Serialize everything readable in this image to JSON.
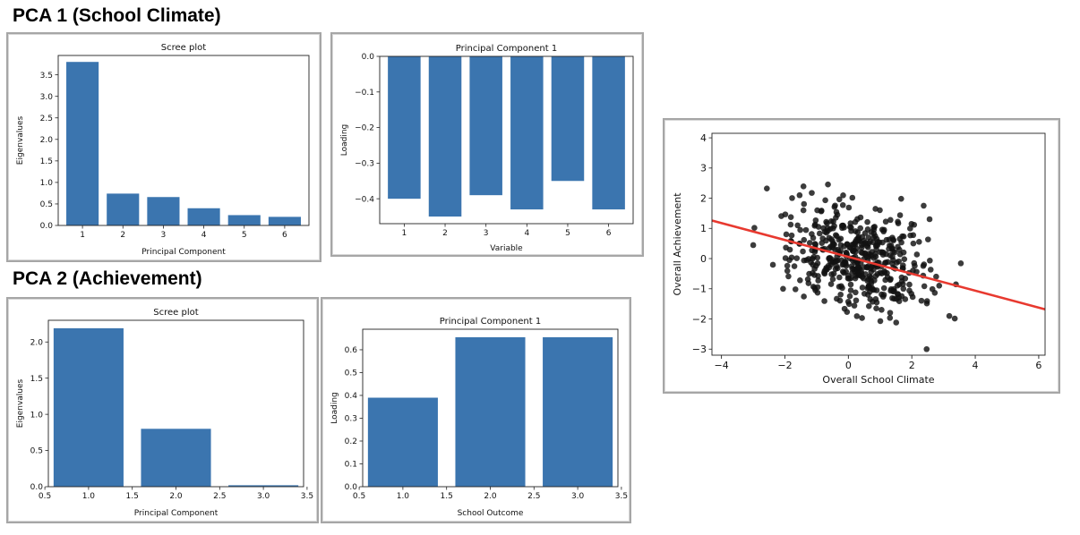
{
  "headings": {
    "pca1": "PCA 1 (School Climate)",
    "pca2": "PCA 2 (Achievement)"
  },
  "colors": {
    "bar": "#3b75af",
    "point": "#111111",
    "fit_line": "#e8392f"
  },
  "chart_data": [
    {
      "id": "pca1-scree",
      "type": "bar",
      "title": "Scree plot",
      "xlabel": "Principal Component",
      "ylabel": "Eigenvalues",
      "categories": [
        "1",
        "2",
        "3",
        "4",
        "5",
        "6"
      ],
      "values": [
        3.8,
        0.74,
        0.66,
        0.4,
        0.24,
        0.2
      ],
      "ylim": [
        0,
        3.95
      ],
      "yticks": [
        "0.0",
        "0.5",
        "1.0",
        "1.5",
        "2.0",
        "2.5",
        "3.0",
        "3.5"
      ],
      "grid": false
    },
    {
      "id": "pca1-loadings",
      "type": "bar",
      "title": "Principal Component 1",
      "xlabel": "Variable",
      "ylabel": "Loading",
      "categories": [
        "1",
        "2",
        "3",
        "4",
        "5",
        "6"
      ],
      "values": [
        -0.4,
        -0.45,
        -0.39,
        -0.43,
        -0.35,
        -0.43
      ],
      "ylim": [
        -0.47,
        0.0
      ],
      "yticks": [
        "0.0",
        "−0.1",
        "−0.2",
        "−0.3",
        "−0.4"
      ],
      "grid": false
    },
    {
      "id": "pca2-scree",
      "type": "bar",
      "title": "Scree plot",
      "xlabel": "Principal Component",
      "ylabel": "Eigenvalues",
      "x": [
        1,
        2,
        3
      ],
      "values": [
        2.19,
        0.8,
        0.02
      ],
      "xlim": [
        0.54,
        3.46
      ],
      "ylim": [
        0,
        2.3
      ],
      "xticks": [
        "0.5",
        "1.0",
        "1.5",
        "2.0",
        "2.5",
        "3.0",
        "3.5"
      ],
      "yticks": [
        "0.0",
        "0.5",
        "1.0",
        "1.5",
        "2.0"
      ],
      "grid": false
    },
    {
      "id": "pca2-loadings",
      "type": "bar",
      "title": "Principal Component 1",
      "xlabel": "School Outcome",
      "ylabel": "Loading",
      "x": [
        1,
        2,
        3
      ],
      "values": [
        0.39,
        0.655,
        0.655
      ],
      "xlim": [
        0.54,
        3.46
      ],
      "ylim": [
        0,
        0.69
      ],
      "xticks": [
        "0.5",
        "1.0",
        "1.5",
        "2.0",
        "2.5",
        "3.0",
        "3.5"
      ],
      "yticks": [
        "0.0",
        "0.1",
        "0.2",
        "0.3",
        "0.4",
        "0.5",
        "0.6"
      ],
      "grid": false
    },
    {
      "id": "climate-vs-achievement",
      "type": "scatter",
      "title": "",
      "xlabel": "Overall School Climate",
      "ylabel": "Overall Achievement",
      "xlim": [
        -4.3,
        6.2
      ],
      "ylim": [
        -3.2,
        4.15
      ],
      "xticks": [
        "−4",
        "−2",
        "0",
        "2",
        "4",
        "6"
      ],
      "yticks": [
        "−3",
        "−2",
        "−1",
        "0",
        "1",
        "2",
        "3",
        "4"
      ],
      "n_points": 480,
      "fit_line": {
        "x": [
          -4.3,
          6.2
        ],
        "y": [
          1.26,
          -1.68
        ]
      },
      "grid": false
    }
  ]
}
